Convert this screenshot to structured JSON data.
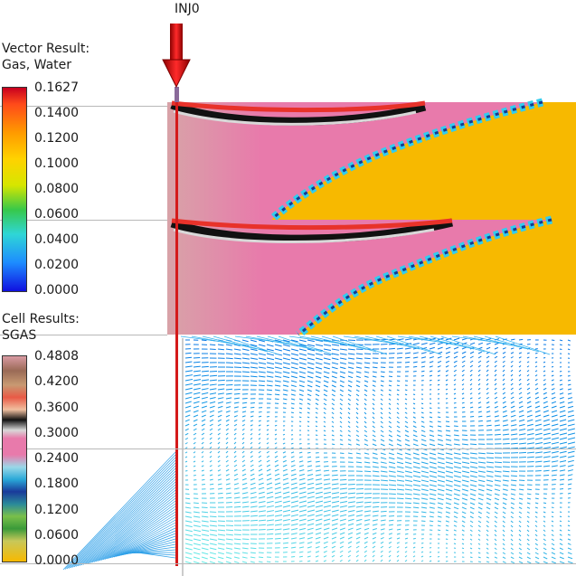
{
  "well": {
    "name": "INJ0"
  },
  "vector_legend": {
    "title_line1": "Vector Result:",
    "title_line2": "Gas, Water",
    "ticks": [
      "0.1627",
      "0.1400",
      "0.1200",
      "0.1000",
      "0.0800",
      "0.0600",
      "0.0400",
      "0.0200",
      "0.0000"
    ]
  },
  "cell_legend": {
    "title_line1": "Cell Results:",
    "title_line2": "SGAS",
    "ticks": [
      "0.4808",
      "0.4200",
      "0.3600",
      "0.3000",
      "0.2400",
      "0.1800",
      "0.1200",
      "0.0600",
      "0.0000"
    ]
  },
  "colors": {
    "pink": "#e87aab",
    "light_pink": "#e69aa6",
    "orange": "#f7b900",
    "black": "#111111",
    "red": "#e8322a",
    "cyan": "#33ccee",
    "blue": "#1a57d8",
    "dark_blue": "#143a8f",
    "well_red": "#d41a1a",
    "vector_blue": "#1a6be0"
  }
}
